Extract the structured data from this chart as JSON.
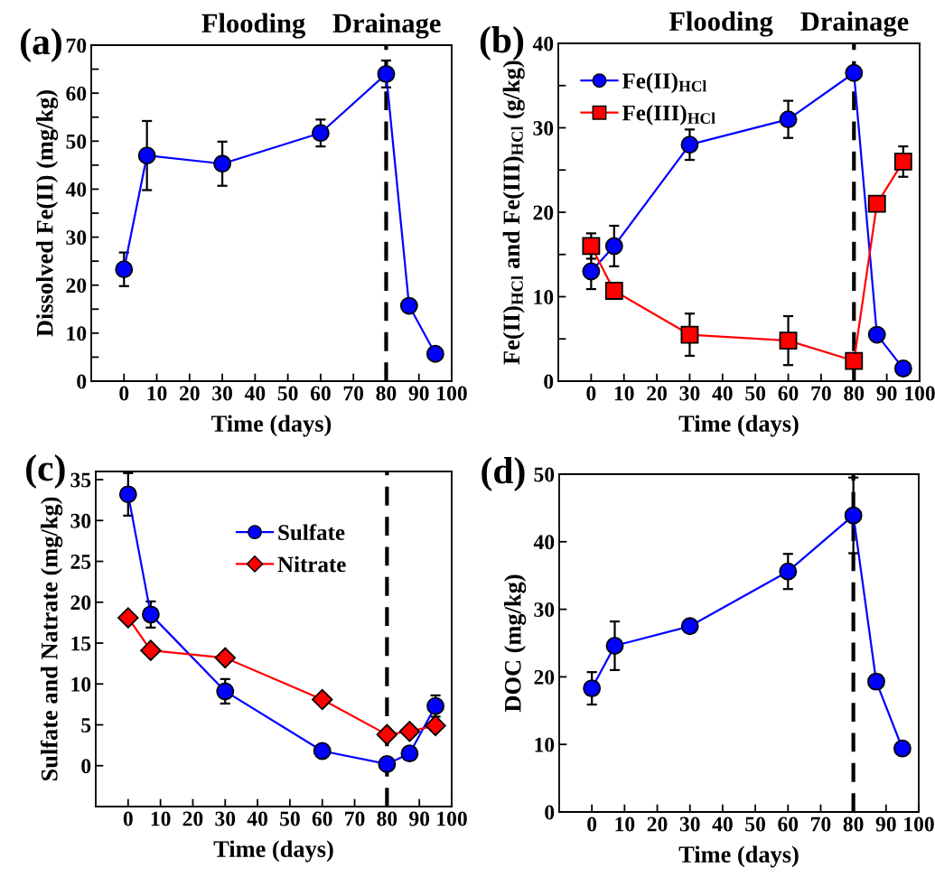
{
  "chart_data": [
    {
      "type": "line",
      "title": "(a)",
      "xlabel": "Time (days)",
      "ylabel": "Dissolved Fe(II) (mg/kg)",
      "annotations": [
        "Flooding",
        "Drainage"
      ],
      "x": [
        0,
        7,
        30,
        60,
        80,
        87,
        95
      ],
      "series": [
        {
          "color": "#0000ff",
          "marker": "circle",
          "values": [
            23.3,
            47.0,
            45.3,
            51.7,
            64.0,
            15.7,
            5.7
          ],
          "errors": [
            3.5,
            7.2,
            4.6,
            2.8,
            2.8,
            null,
            null
          ]
        }
      ],
      "xlim": [
        -10,
        100
      ],
      "xticks": [
        0,
        10,
        20,
        30,
        40,
        50,
        60,
        70,
        80,
        90,
        100
      ],
      "ylim": [
        0,
        70
      ],
      "yticks": [
        0,
        {
          "value": 5,
          "label": null
        },
        10,
        {
          "value": 15,
          "label": null
        },
        20,
        {
          "value": 25,
          "label": null
        },
        30,
        {
          "value": 35,
          "label": null
        },
        40,
        {
          "value": 45,
          "label": null
        },
        50,
        {
          "value": 55,
          "label": null
        },
        60,
        {
          "value": 65,
          "label": null
        },
        70
      ],
      "ref_lines": [
        {
          "axis": "x",
          "value": 80,
          "color": "#000000",
          "line_style": "dashed"
        }
      ],
      "grid": false,
      "legend": false
    },
    {
      "type": "line",
      "title": "(b)",
      "xlabel": "Time (days)",
      "ylabel": "Fe(II)$_{HCl}$ and Fe(III)$_{HCl}$ (g/kg)",
      "annotations": [
        "Flooding",
        "Drainage"
      ],
      "x": [
        0,
        7,
        30,
        60,
        80,
        87,
        95
      ],
      "series": [
        {
          "name": "Fe(II)$_{HCl}$",
          "color": "#0000ff",
          "marker": "circle",
          "values": [
            13.0,
            16.0,
            28.0,
            31.0,
            36.5,
            5.5,
            1.5
          ],
          "errors": [
            2.1,
            2.4,
            1.8,
            2.2,
            null,
            null,
            null
          ]
        },
        {
          "name": "Fe(III)$_{HCl}$",
          "color": "#ff0000",
          "marker": "square",
          "values": [
            16.0,
            10.7,
            5.5,
            4.8,
            2.4,
            21.0,
            26.0
          ],
          "errors": [
            1.5,
            null,
            2.5,
            2.9,
            null,
            null,
            1.8
          ]
        }
      ],
      "xlim": [
        -10,
        100
      ],
      "xticks": [
        0,
        10,
        20,
        30,
        40,
        50,
        60,
        70,
        80,
        90,
        100
      ],
      "ylim": [
        0,
        40
      ],
      "yticks": [
        0,
        {
          "value": 5,
          "label": null
        },
        10,
        {
          "value": 15,
          "label": null
        },
        20,
        {
          "value": 25,
          "label": null
        },
        30,
        {
          "value": 35,
          "label": null
        },
        40
      ],
      "ref_lines": [
        {
          "axis": "x",
          "value": 80,
          "color": "#000000",
          "line_style": "dashed"
        }
      ],
      "grid": false,
      "legend": "top left"
    },
    {
      "type": "line",
      "title": "(c)",
      "xlabel": "Time (days)",
      "ylabel": "Sulfate and Natrate (mg/kg)",
      "x": [
        0,
        7,
        30,
        60,
        80,
        87,
        95
      ],
      "series": [
        {
          "name": "Sulfate",
          "color": "#0000ff",
          "marker": "circle",
          "values": [
            33.2,
            18.5,
            9.1,
            1.8,
            0.2,
            1.5,
            7.3
          ],
          "errors": [
            2.6,
            1.6,
            1.5,
            null,
            null,
            null,
            1.3
          ]
        },
        {
          "name": "Nitrate",
          "color": "#ff0000",
          "marker": "diamond",
          "values": [
            18.1,
            14.1,
            13.2,
            8.1,
            3.8,
            4.2,
            4.9
          ]
        }
      ],
      "xlim": [
        -10,
        100
      ],
      "xticks": [
        0,
        10,
        20,
        30,
        40,
        50,
        60,
        70,
        80,
        90,
        100
      ],
      "ylim": [
        -5,
        36
      ],
      "yticks": [
        0,
        5,
        10,
        15,
        20,
        25,
        30,
        35
      ],
      "ref_lines": [
        {
          "axis": "x",
          "value": 80,
          "color": "#000000",
          "line_style": "dashed"
        }
      ],
      "grid": false,
      "legend": "top"
    },
    {
      "type": "line",
      "title": "(d)",
      "xlabel": "Time (days)",
      "ylabel": "DOC (mg/kg)",
      "x": [
        0,
        7,
        30,
        60,
        80,
        87,
        95
      ],
      "series": [
        {
          "color": "#0000ff",
          "marker": "circle",
          "values": [
            18.3,
            24.6,
            27.5,
            35.6,
            43.9,
            19.3,
            9.4
          ],
          "errors": [
            2.4,
            3.6,
            0.9,
            2.6,
            5.6,
            1.0,
            null
          ]
        }
      ],
      "xlim": [
        -10,
        100
      ],
      "xticks": [
        0,
        10,
        20,
        30,
        40,
        50,
        60,
        70,
        80,
        90,
        100
      ],
      "ylim": [
        0,
        50
      ],
      "yticks": [
        0,
        10,
        20,
        30,
        40,
        50
      ],
      "ref_lines": [
        {
          "axis": "x",
          "value": 80,
          "color": "#000000",
          "line_style": "dashed"
        }
      ],
      "grid": false,
      "legend": false
    }
  ]
}
